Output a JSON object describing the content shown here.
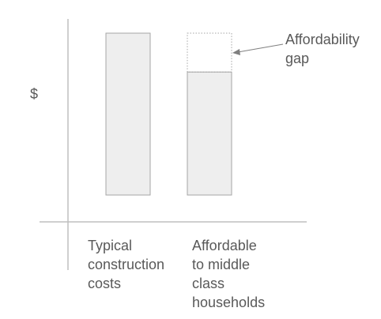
{
  "chart_data": {
    "type": "bar",
    "title": "",
    "xlabel": "",
    "ylabel": "$",
    "categories": [
      "Typical\nconstruction\ncosts",
      "Affordable\nto middle\nclass\nhouseholds"
    ],
    "values": [
      100,
      76
    ],
    "gap": {
      "category_index": 1,
      "top_value": 100,
      "label": "Affordability\ngap"
    },
    "ylim": [
      0,
      100
    ],
    "grid": false,
    "legend": "none",
    "colors": {
      "bar_fill": "#eeeeee",
      "bar_stroke": "#a6a6a6",
      "axis": "#bfbfbf",
      "text": "#595959",
      "arrow": "#7f7f7f"
    }
  }
}
